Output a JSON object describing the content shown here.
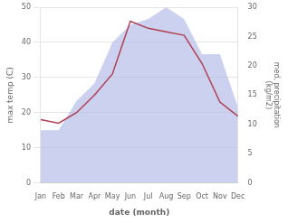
{
  "chart_data": {
    "type": "line",
    "xlabel": "date (month)",
    "ylabel": "max temp (C)",
    "y2label": "med. precipitation\n(kg/m2)",
    "categories": [
      "Jan",
      "Feb",
      "Mar",
      "Apr",
      "May",
      "Jun",
      "Jul",
      "Aug",
      "Sep",
      "Oct",
      "Nov",
      "Dec"
    ],
    "series": [
      {
        "type": "line",
        "color": "#b04050",
        "values": [
          18,
          17,
          20,
          25,
          31,
          46,
          44,
          43,
          42,
          34,
          23,
          19
        ]
      },
      {
        "type": "area",
        "axis": "y2",
        "color": "#b0b8e8",
        "values": [
          9,
          9,
          14,
          17,
          24,
          27,
          28,
          30,
          28,
          22,
          22,
          13
        ]
      }
    ],
    "ylim": [
      0,
      50
    ],
    "yticks": [
      0,
      10,
      20,
      30,
      40,
      50
    ],
    "y2lim": [
      0,
      30
    ],
    "y2ticks": [
      0,
      5,
      10,
      15,
      20,
      25,
      30
    ],
    "grid": "y",
    "legend": false
  }
}
